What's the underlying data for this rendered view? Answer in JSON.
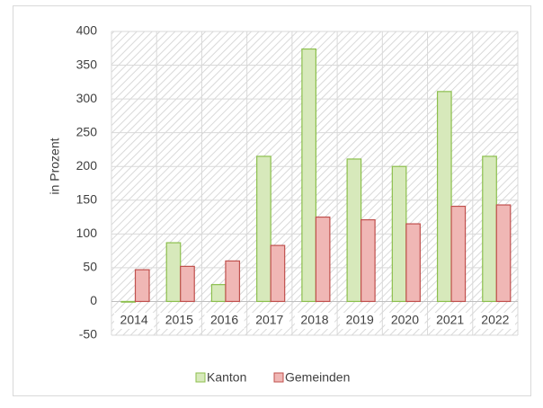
{
  "chart_data": {
    "type": "bar",
    "y_label": "in Prozent",
    "categories": [
      "2014",
      "2015",
      "2016",
      "2017",
      "2018",
      "2019",
      "2020",
      "2021",
      "2022"
    ],
    "series": [
      {
        "name": "Kanton",
        "color": "#d7e9bb",
        "stroke": "#8cbf4d",
        "values": [
          -1,
          87,
          25,
          215,
          374,
          211,
          200,
          311,
          215
        ]
      },
      {
        "name": "Gemeinden",
        "color": "#f0b7b5",
        "stroke": "#c0504d",
        "values": [
          47,
          52,
          60,
          83,
          125,
          121,
          115,
          141,
          143
        ]
      }
    ],
    "ylim": [
      -50,
      400
    ],
    "yticks": [
      -50,
      0,
      50,
      100,
      150,
      200,
      250,
      300,
      350,
      400
    ],
    "grid": true,
    "legend": "bottom"
  }
}
